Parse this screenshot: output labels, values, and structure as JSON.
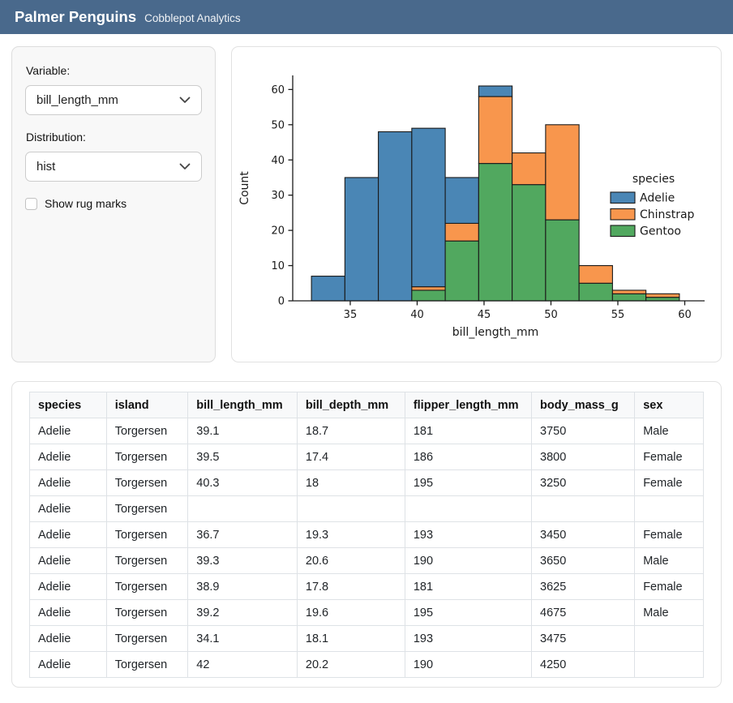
{
  "header": {
    "title": "Palmer Penguins",
    "subtitle": "Cobblepot Analytics"
  },
  "colors": {
    "navbar": "#49698c",
    "adelie": "#4a86b5",
    "chinstrap": "#f8964d",
    "gentoo": "#51a85f"
  },
  "sidebar": {
    "variable_label": "Variable:",
    "variable_value": "bill_length_mm",
    "distribution_label": "Distribution:",
    "distribution_value": "hist",
    "rug_label": "Show rug marks",
    "rug_checked": false
  },
  "chart_data": {
    "type": "bar",
    "subtype": "stacked-histogram",
    "xlabel": "bill_length_mm",
    "ylabel": "Count",
    "bin_edges": [
      32.1,
      34.6,
      37.1,
      39.6,
      42.1,
      44.6,
      47.1,
      49.6,
      52.1,
      54.6,
      57.1,
      59.6
    ],
    "series": [
      {
        "name": "Gentoo",
        "color": "#51a85f",
        "values": [
          0,
          0,
          0,
          3,
          17,
          39,
          33,
          23,
          5,
          2,
          1
        ]
      },
      {
        "name": "Chinstrap",
        "color": "#f8964d",
        "values": [
          0,
          0,
          0,
          1,
          5,
          19,
          9,
          27,
          5,
          1,
          1
        ]
      },
      {
        "name": "Adelie",
        "color": "#4a86b5",
        "values": [
          7,
          35,
          48,
          45,
          13,
          3,
          0,
          0,
          0,
          0,
          0
        ]
      }
    ],
    "bin_totals": [
      7,
      35,
      48,
      49,
      35,
      61,
      42,
      50,
      10,
      3,
      2
    ],
    "legend": {
      "title": "species",
      "entries": [
        "Adelie",
        "Chinstrap",
        "Gentoo"
      ],
      "position": "center-right"
    },
    "xticks": [
      35,
      40,
      45,
      50,
      55,
      60
    ],
    "yticks": [
      0,
      10,
      20,
      30,
      40,
      50,
      60
    ],
    "xlim": [
      30.7,
      61.0
    ],
    "ylim": [
      0,
      64
    ],
    "grid": false
  },
  "table": {
    "columns": [
      "species",
      "island",
      "bill_length_mm",
      "bill_depth_mm",
      "flipper_length_mm",
      "body_mass_g",
      "sex"
    ],
    "rows": [
      [
        "Adelie",
        "Torgersen",
        "39.1",
        "18.7",
        "181",
        "3750",
        "Male"
      ],
      [
        "Adelie",
        "Torgersen",
        "39.5",
        "17.4",
        "186",
        "3800",
        "Female"
      ],
      [
        "Adelie",
        "Torgersen",
        "40.3",
        "18",
        "195",
        "3250",
        "Female"
      ],
      [
        "Adelie",
        "Torgersen",
        "",
        "",
        "",
        "",
        ""
      ],
      [
        "Adelie",
        "Torgersen",
        "36.7",
        "19.3",
        "193",
        "3450",
        "Female"
      ],
      [
        "Adelie",
        "Torgersen",
        "39.3",
        "20.6",
        "190",
        "3650",
        "Male"
      ],
      [
        "Adelie",
        "Torgersen",
        "38.9",
        "17.8",
        "181",
        "3625",
        "Female"
      ],
      [
        "Adelie",
        "Torgersen",
        "39.2",
        "19.6",
        "195",
        "4675",
        "Male"
      ],
      [
        "Adelie",
        "Torgersen",
        "34.1",
        "18.1",
        "193",
        "3475",
        ""
      ],
      [
        "Adelie",
        "Torgersen",
        "42",
        "20.2",
        "190",
        "4250",
        ""
      ]
    ]
  }
}
